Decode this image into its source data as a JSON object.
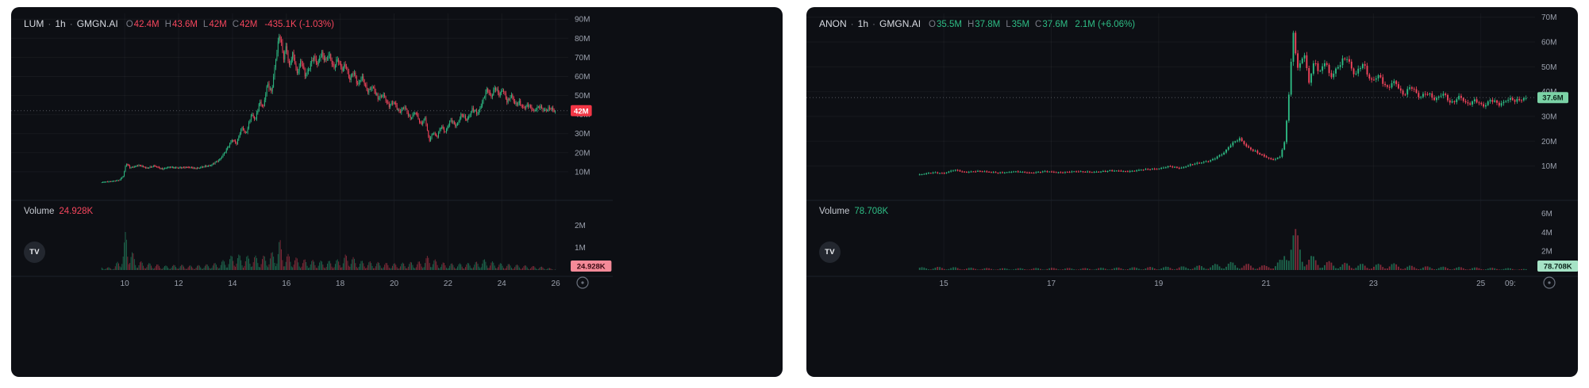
{
  "ui": {
    "separator": "·",
    "o_key": "O",
    "h_key": "H",
    "l_key": "L",
    "c_key": "C",
    "volume_label": "Volume",
    "tv_logo_text": "TV"
  },
  "colors": {
    "up": "#2ebd85",
    "down": "#f6465d",
    "panel_bg": "#0d0f14",
    "axis_text": "#9ba1ad",
    "price_line": "#8b8f99",
    "badge_down_bg": "#f23645",
    "badge_down_text": "#ffffff",
    "badge_up_bg": "#7bd2a6",
    "badge_up_text": "#0b241a",
    "vol_badge_down_bg": "#f48a98",
    "vol_badge_down_text": "#3a0a12",
    "vol_badge_up_bg": "#a6e3c6",
    "vol_badge_up_text": "#0b241a"
  },
  "chart_data": [
    {
      "type": "candlestick",
      "title": "LUM · 1h · GMGN.AI",
      "symbol": "LUM",
      "interval": "1h",
      "source": "GMGN.AI",
      "ohlc_display": {
        "o": "42.4M",
        "h": "43.6M",
        "l": "42M",
        "c": "42M"
      },
      "change_text": "-435.1K (-1.03%)",
      "trend": "down",
      "last_price": 42,
      "last_price_label": "42M",
      "y_axis": {
        "unit": "M",
        "max": 93,
        "tick_values": [
          90,
          80,
          70,
          60,
          50,
          40,
          30,
          20,
          10
        ],
        "tick_labels": [
          "90M",
          "80M",
          "70M",
          "60M",
          "50M",
          "40M",
          "30M",
          "20M",
          "10M"
        ]
      },
      "x_axis": {
        "unit": "day",
        "view": [
          5.9,
          26.35
        ],
        "tick_values": [
          10,
          12,
          14,
          16,
          18,
          20,
          22,
          24,
          26
        ],
        "tick_labels": [
          "10",
          "12",
          "14",
          "16",
          "18",
          "20",
          "22",
          "24",
          "26"
        ],
        "extra": null
      },
      "volume": {
        "display": "24.928K",
        "badge": "24.928K",
        "max": 2.9,
        "tick_values": [
          2,
          1
        ],
        "tick_labels": [
          "2M",
          "1M"
        ],
        "profile": [
          [
            9.15,
            0.15
          ],
          [
            9.6,
            0.1
          ],
          [
            9.95,
            0.9
          ],
          [
            10.05,
            2.05
          ],
          [
            10.2,
            1.1
          ],
          [
            10.4,
            0.5
          ],
          [
            10.7,
            0.35
          ],
          [
            11.0,
            0.3
          ],
          [
            11.5,
            0.2
          ],
          [
            12.0,
            0.25
          ],
          [
            12.5,
            0.2
          ],
          [
            13.0,
            0.25
          ],
          [
            13.5,
            0.35
          ],
          [
            13.9,
            0.6
          ],
          [
            14.1,
            0.8
          ],
          [
            14.4,
            0.6
          ],
          [
            14.7,
            0.7
          ],
          [
            15.0,
            0.6
          ],
          [
            15.3,
            0.7
          ],
          [
            15.6,
            0.9
          ],
          [
            15.75,
            1.45
          ],
          [
            15.9,
            0.8
          ],
          [
            16.1,
            0.7
          ],
          [
            16.5,
            0.5
          ],
          [
            17.0,
            0.45
          ],
          [
            17.5,
            0.4
          ],
          [
            18.0,
            0.5
          ],
          [
            18.3,
            0.8
          ],
          [
            18.6,
            0.45
          ],
          [
            19.0,
            0.4
          ],
          [
            19.5,
            0.35
          ],
          [
            20.0,
            0.3
          ],
          [
            20.5,
            0.35
          ],
          [
            21.0,
            0.4
          ],
          [
            21.3,
            0.7
          ],
          [
            21.6,
            0.4
          ],
          [
            22.0,
            0.3
          ],
          [
            22.5,
            0.3
          ],
          [
            23.0,
            0.35
          ],
          [
            23.3,
            0.5
          ],
          [
            23.6,
            0.4
          ],
          [
            24.0,
            0.3
          ],
          [
            24.5,
            0.25
          ],
          [
            25.0,
            0.2
          ],
          [
            25.5,
            0.15
          ],
          [
            25.95,
            0.05
          ]
        ]
      },
      "price_path": [
        [
          9.15,
          4.5
        ],
        [
          9.5,
          5
        ],
        [
          9.8,
          5.5
        ],
        [
          9.95,
          8
        ],
        [
          10.05,
          14.5
        ],
        [
          10.2,
          12
        ],
        [
          10.5,
          13.5
        ],
        [
          10.8,
          12
        ],
        [
          11.1,
          13
        ],
        [
          11.4,
          11.5
        ],
        [
          11.7,
          12.5
        ],
        [
          12.0,
          12
        ],
        [
          12.3,
          12.5
        ],
        [
          12.6,
          11.8
        ],
        [
          12.9,
          12.5
        ],
        [
          13.2,
          13.5
        ],
        [
          13.5,
          16
        ],
        [
          13.8,
          22
        ],
        [
          14.0,
          27
        ],
        [
          14.15,
          25
        ],
        [
          14.35,
          33
        ],
        [
          14.5,
          30
        ],
        [
          14.7,
          40
        ],
        [
          14.85,
          37
        ],
        [
          15.0,
          47
        ],
        [
          15.15,
          44
        ],
        [
          15.3,
          56
        ],
        [
          15.45,
          52
        ],
        [
          15.6,
          68
        ],
        [
          15.75,
          82
        ],
        [
          15.9,
          70
        ],
        [
          16.0,
          77
        ],
        [
          16.1,
          64
        ],
        [
          16.25,
          72
        ],
        [
          16.4,
          62
        ],
        [
          16.55,
          68
        ],
        [
          16.7,
          60
        ],
        [
          16.85,
          65
        ],
        [
          17.0,
          70
        ],
        [
          17.15,
          66
        ],
        [
          17.3,
          73
        ],
        [
          17.45,
          68
        ],
        [
          17.6,
          71
        ],
        [
          17.75,
          65
        ],
        [
          17.9,
          69
        ],
        [
          18.05,
          63
        ],
        [
          18.2,
          67
        ],
        [
          18.35,
          58
        ],
        [
          18.5,
          62
        ],
        [
          18.65,
          56
        ],
        [
          18.8,
          60
        ],
        [
          19.0,
          52
        ],
        [
          19.2,
          55
        ],
        [
          19.4,
          48
        ],
        [
          19.6,
          51
        ],
        [
          19.8,
          44
        ],
        [
          20.0,
          47
        ],
        [
          20.2,
          41
        ],
        [
          20.4,
          44
        ],
        [
          20.6,
          38
        ],
        [
          20.8,
          41
        ],
        [
          21.0,
          35
        ],
        [
          21.15,
          38
        ],
        [
          21.3,
          26
        ],
        [
          21.45,
          31
        ],
        [
          21.6,
          28
        ],
        [
          21.75,
          34
        ],
        [
          21.9,
          31
        ],
        [
          22.1,
          37
        ],
        [
          22.3,
          34
        ],
        [
          22.5,
          40
        ],
        [
          22.7,
          37
        ],
        [
          22.9,
          43
        ],
        [
          23.1,
          40
        ],
        [
          23.3,
          48
        ],
        [
          23.45,
          53
        ],
        [
          23.6,
          49
        ],
        [
          23.75,
          55
        ],
        [
          23.9,
          50
        ],
        [
          24.05,
          53
        ],
        [
          24.2,
          47
        ],
        [
          24.35,
          50
        ],
        [
          24.5,
          45
        ],
        [
          24.65,
          47
        ],
        [
          24.8,
          43
        ],
        [
          25.0,
          45
        ],
        [
          25.2,
          42
        ],
        [
          25.4,
          44
        ],
        [
          25.6,
          42.5
        ],
        [
          25.8,
          43
        ],
        [
          25.95,
          42
        ]
      ],
      "data_range": [
        9.15,
        25.97
      ],
      "layout": {
        "content_width": 758
      }
    },
    {
      "type": "candlestick",
      "title": "ANON · 1h · GMGN.AI",
      "symbol": "ANON",
      "interval": "1h",
      "source": "GMGN.AI",
      "ohlc_display": {
        "o": "35.5M",
        "h": "37.8M",
        "l": "35M",
        "c": "37.6M"
      },
      "change_text": "2.1M (+6.06%)",
      "trend": "up",
      "last_price": 37.6,
      "last_price_label": "37.6M",
      "y_axis": {
        "unit": "M",
        "max": 71.5,
        "tick_values": [
          70,
          60,
          50,
          40,
          30,
          20,
          10
        ],
        "tick_labels": [
          "70M",
          "60M",
          "50M",
          "40M",
          "30M",
          "20M",
          "10M"
        ]
      },
      "x_axis": {
        "unit": "day",
        "view": [
          12.5,
          25.95
        ],
        "tick_values": [
          15,
          17,
          19,
          21,
          23,
          25
        ],
        "tick_labels": [
          "15",
          "17",
          "19",
          "21",
          "23",
          "25"
        ],
        "extra": {
          "label": "09:",
          "day": 25.55
        }
      },
      "volume": {
        "display": "78.708K",
        "badge": "78.708K",
        "max": 6.9,
        "tick_values": [
          6,
          4,
          2
        ],
        "tick_labels": [
          "6M",
          "4M",
          "2M"
        ],
        "profile": [
          [
            14.55,
            0.3
          ],
          [
            15.0,
            0.35
          ],
          [
            15.5,
            0.25
          ],
          [
            16.0,
            0.2
          ],
          [
            16.5,
            0.2
          ],
          [
            17.0,
            0.25
          ],
          [
            17.5,
            0.2
          ],
          [
            18.0,
            0.25
          ],
          [
            18.5,
            0.3
          ],
          [
            19.0,
            0.35
          ],
          [
            19.5,
            0.4
          ],
          [
            20.0,
            0.6
          ],
          [
            20.3,
            0.9
          ],
          [
            20.6,
            0.7
          ],
          [
            21.0,
            0.5
          ],
          [
            21.3,
            1.2
          ],
          [
            21.45,
            6.2
          ],
          [
            21.55,
            4.5
          ],
          [
            21.7,
            2.2
          ],
          [
            21.9,
            1.4
          ],
          [
            22.1,
            1.0
          ],
          [
            22.4,
            0.8
          ],
          [
            22.7,
            0.7
          ],
          [
            23.0,
            0.6
          ],
          [
            23.3,
            0.8
          ],
          [
            23.6,
            0.5
          ],
          [
            24.0,
            0.4
          ],
          [
            24.4,
            0.35
          ],
          [
            24.8,
            0.3
          ],
          [
            25.2,
            0.25
          ],
          [
            25.6,
            0.2
          ],
          [
            25.83,
            0.1
          ]
        ]
      },
      "price_path": [
        [
          14.55,
          6.5
        ],
        [
          14.8,
          7.5
        ],
        [
          15.0,
          7
        ],
        [
          15.2,
          8.5
        ],
        [
          15.4,
          7.5
        ],
        [
          15.7,
          8
        ],
        [
          16.0,
          7.2
        ],
        [
          16.3,
          7.8
        ],
        [
          16.6,
          7.3
        ],
        [
          16.9,
          7.8
        ],
        [
          17.2,
          7.4
        ],
        [
          17.5,
          7.9
        ],
        [
          17.8,
          7.5
        ],
        [
          18.1,
          8.2
        ],
        [
          18.4,
          7.8
        ],
        [
          18.7,
          8.5
        ],
        [
          19.0,
          9
        ],
        [
          19.2,
          9.8
        ],
        [
          19.4,
          9.2
        ],
        [
          19.6,
          10.5
        ],
        [
          19.8,
          11.5
        ],
        [
          20.0,
          12.5
        ],
        [
          20.2,
          15
        ],
        [
          20.35,
          19
        ],
        [
          20.5,
          21
        ],
        [
          20.65,
          17.5
        ],
        [
          20.8,
          16
        ],
        [
          20.95,
          14
        ],
        [
          21.1,
          12.5
        ],
        [
          21.25,
          13.5
        ],
        [
          21.35,
          20
        ],
        [
          21.45,
          45
        ],
        [
          21.5,
          64
        ],
        [
          21.6,
          48
        ],
        [
          21.7,
          57
        ],
        [
          21.8,
          44
        ],
        [
          21.9,
          52
        ],
        [
          22.0,
          47
        ],
        [
          22.1,
          53
        ],
        [
          22.2,
          46
        ],
        [
          22.35,
          50
        ],
        [
          22.5,
          54
        ],
        [
          22.65,
          47
        ],
        [
          22.8,
          51
        ],
        [
          22.95,
          44
        ],
        [
          23.1,
          47
        ],
        [
          23.25,
          41
        ],
        [
          23.4,
          44
        ],
        [
          23.55,
          39
        ],
        [
          23.7,
          42
        ],
        [
          23.85,
          37.5
        ],
        [
          24.0,
          40
        ],
        [
          24.15,
          36.5
        ],
        [
          24.3,
          39
        ],
        [
          24.45,
          35.5
        ],
        [
          24.6,
          38
        ],
        [
          24.75,
          34.5
        ],
        [
          24.9,
          37
        ],
        [
          25.05,
          34
        ],
        [
          25.2,
          36.5
        ],
        [
          25.35,
          35
        ],
        [
          25.5,
          37
        ],
        [
          25.65,
          36
        ],
        [
          25.83,
          37.6
        ]
      ],
      "data_range": [
        14.55,
        25.83
      ],
      "layout": {
        "content_width": 974
      }
    }
  ]
}
